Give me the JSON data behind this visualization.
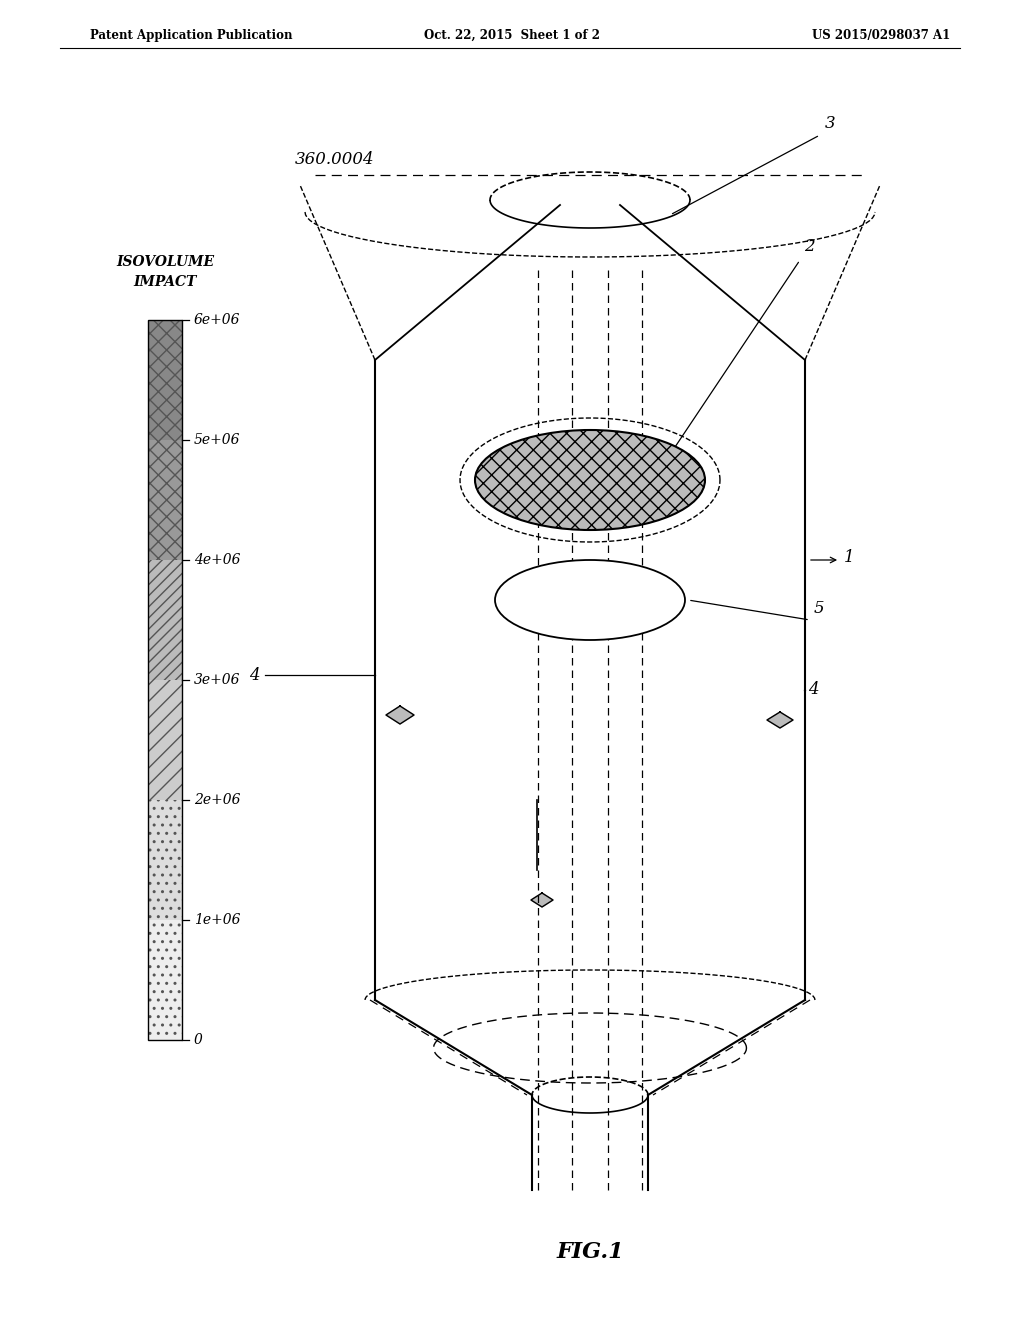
{
  "header_left": "Patent Application Publication",
  "header_center": "Oct. 22, 2015  Sheet 1 of 2",
  "header_right": "US 2015/0298037 A1",
  "colorbar_label_line1": "ISOVOLUME",
  "colorbar_label_line2": "IMPACT",
  "colorbar_ticks": [
    "6e+06",
    "5e+06",
    "4e+06",
    "3e+06",
    "2e+06",
    "1e+06",
    "0"
  ],
  "top_label": "360.0004",
  "figure_label": "FIG.1",
  "background_color": "#ffffff",
  "line_color": "#000000"
}
